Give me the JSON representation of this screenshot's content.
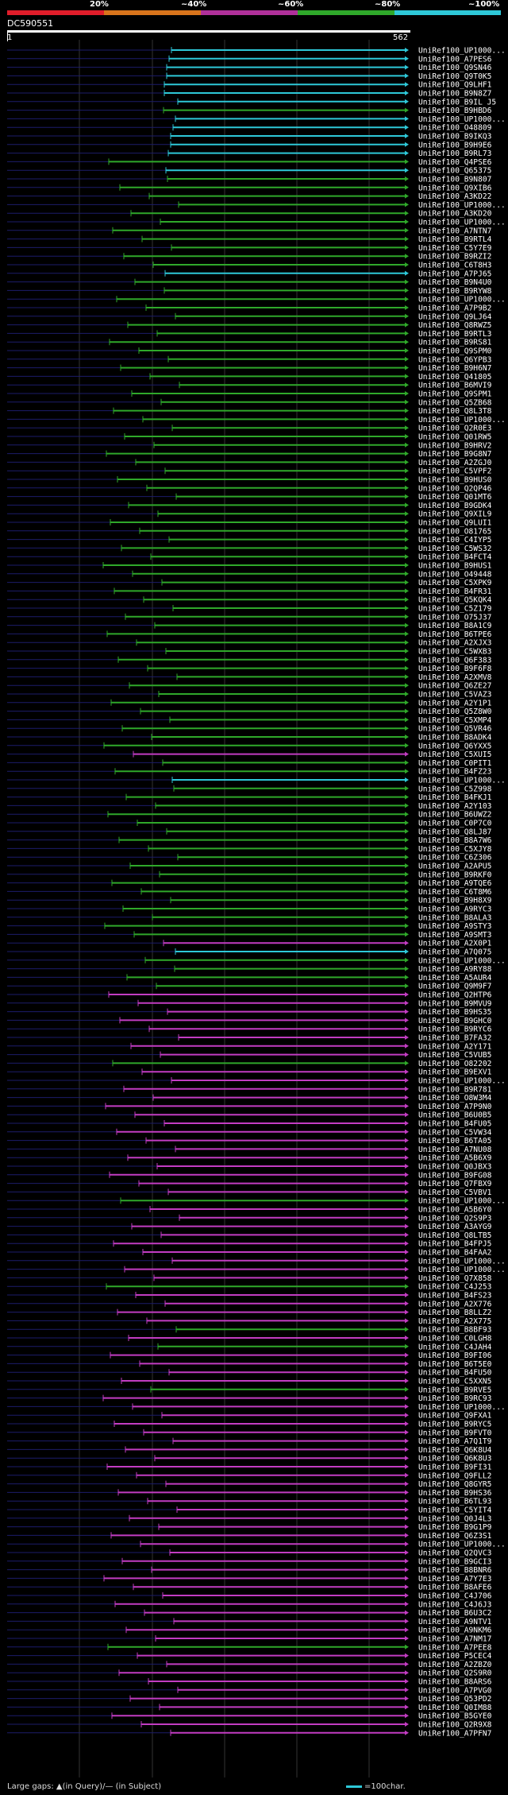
{
  "legend": {
    "labels": [
      "20%",
      "~40%",
      "~60%",
      "~80%",
      "~100%"
    ],
    "colors": [
      "#e01d2a",
      "#d8741c",
      "#b0309a",
      "#2fa82a",
      "#2ec8d8"
    ]
  },
  "query": {
    "name": "DC590551",
    "start": "1",
    "end": "562"
  },
  "footer": {
    "large_gaps": "Large gaps: ▲(in Query)/— (in Subject)",
    "scale_note": "=100char."
  },
  "hits": [
    {
      "label": "UniRef100_UP1000...",
      "color": "cyan"
    },
    {
      "label": "UniRef100_A7PES6",
      "color": "cyan"
    },
    {
      "label": "UniRef100_Q9SN46",
      "color": "cyan"
    },
    {
      "label": "UniRef100_Q9T0K5",
      "color": "cyan"
    },
    {
      "label": "UniRef100_Q9LHF1",
      "color": "cyan"
    },
    {
      "label": "UniRef100_B9N8Z7",
      "color": "cyan"
    },
    {
      "label": "UniRef100_B9IL J5",
      "color": "cyan"
    },
    {
      "label": "UniRef100_B9HBD6",
      "color": "green"
    },
    {
      "label": "UniRef100_UP1000...",
      "color": "cyan"
    },
    {
      "label": "UniRef100_O48809",
      "color": "cyan"
    },
    {
      "label": "UniRef100_B9IKQ3",
      "color": "cyan"
    },
    {
      "label": "UniRef100_B9H9E6",
      "color": "cyan"
    },
    {
      "label": "UniRef100_B9RL73",
      "color": "cyan"
    },
    {
      "label": "UniRef100_Q4PSE6",
      "color": "green"
    },
    {
      "label": "UniRef100_Q65375",
      "color": "cyan"
    },
    {
      "label": "UniRef100_B9N807",
      "color": "green"
    },
    {
      "label": "UniRef100_Q9XIB6",
      "color": "green"
    },
    {
      "label": "UniRef100_A3KD22",
      "color": "green"
    },
    {
      "label": "UniRef100_UP1000...",
      "color": "green"
    },
    {
      "label": "UniRef100_A3KD20",
      "color": "green"
    },
    {
      "label": "UniRef100_UP1000...",
      "color": "green"
    },
    {
      "label": "UniRef100_A7NTN7",
      "color": "green"
    },
    {
      "label": "UniRef100_B9RTL4",
      "color": "green"
    },
    {
      "label": "UniRef100_C5Y7E9",
      "color": "green"
    },
    {
      "label": "UniRef100_B9RZI2",
      "color": "green"
    },
    {
      "label": "UniRef100_C6T8H3",
      "color": "green"
    },
    {
      "label": "UniRef100_A7PJ65",
      "color": "cyan"
    },
    {
      "label": "UniRef100_B9N4U0",
      "color": "green"
    },
    {
      "label": "UniRef100_B9RYW8",
      "color": "green"
    },
    {
      "label": "UniRef100_UP1000...",
      "color": "green"
    },
    {
      "label": "UniRef100_A7P9B2",
      "color": "green"
    },
    {
      "label": "UniRef100_Q9LJ64",
      "color": "green"
    },
    {
      "label": "UniRef100_Q8RWZ5",
      "color": "green"
    },
    {
      "label": "UniRef100_B9RTL3",
      "color": "green"
    },
    {
      "label": "UniRef100_B9RS81",
      "color": "green"
    },
    {
      "label": "UniRef100_Q9SPM0",
      "color": "green"
    },
    {
      "label": "UniRef100_Q6YPB3",
      "color": "green"
    },
    {
      "label": "UniRef100_B9H6N7",
      "color": "green"
    },
    {
      "label": "UniRef100_Q41805",
      "color": "green"
    },
    {
      "label": "UniRef100_B6MVI9",
      "color": "green"
    },
    {
      "label": "UniRef100_Q9SPM1",
      "color": "green"
    },
    {
      "label": "UniRef100_Q5ZB68",
      "color": "green"
    },
    {
      "label": "UniRef100_Q8L3T8",
      "color": "green"
    },
    {
      "label": "UniRef100_UP1000...",
      "color": "green"
    },
    {
      "label": "UniRef100_Q2R0E3",
      "color": "green"
    },
    {
      "label": "UniRef100_Q01RW5",
      "color": "green"
    },
    {
      "label": "UniRef100_B9HRV2",
      "color": "green"
    },
    {
      "label": "UniRef100_B9G8N7",
      "color": "green"
    },
    {
      "label": "UniRef100_A2ZGJ0",
      "color": "green"
    },
    {
      "label": "UniRef100_C5VPF2",
      "color": "green"
    },
    {
      "label": "UniRef100_B9HUS0",
      "color": "green"
    },
    {
      "label": "UniRef100_Q2QP46",
      "color": "green"
    },
    {
      "label": "UniRef100_Q01MT6",
      "color": "green"
    },
    {
      "label": "UniRef100_B9GDK4",
      "color": "green"
    },
    {
      "label": "UniRef100_Q9XIL9",
      "color": "green"
    },
    {
      "label": "UniRef100_Q9LUI1",
      "color": "green"
    },
    {
      "label": "UniRef100_O81765",
      "color": "green"
    },
    {
      "label": "UniRef100_C4IYP5",
      "color": "green"
    },
    {
      "label": "UniRef100_C5WS32",
      "color": "green"
    },
    {
      "label": "UniRef100_B4FCT4",
      "color": "green"
    },
    {
      "label": "UniRef100_B9HUS1",
      "color": "green"
    },
    {
      "label": "UniRef100_O49448",
      "color": "green"
    },
    {
      "label": "UniRef100_C5XPK9",
      "color": "green"
    },
    {
      "label": "UniRef100_B4FR31",
      "color": "green"
    },
    {
      "label": "UniRef100_Q5KQK4",
      "color": "green"
    },
    {
      "label": "UniRef100_C5Z179",
      "color": "green"
    },
    {
      "label": "UniRef100_O75J37",
      "color": "green"
    },
    {
      "label": "UniRef100_B8A1C9",
      "color": "green"
    },
    {
      "label": "UniRef100_B6TPE6",
      "color": "green"
    },
    {
      "label": "UniRef100_A2XJX3",
      "color": "green"
    },
    {
      "label": "UniRef100_C5WXB3",
      "color": "green"
    },
    {
      "label": "UniRef100_Q6F383",
      "color": "green"
    },
    {
      "label": "UniRef100_B9F6F8",
      "color": "green"
    },
    {
      "label": "UniRef100_A2XMV8",
      "color": "green"
    },
    {
      "label": "UniRef100_Q6ZE27",
      "color": "green"
    },
    {
      "label": "UniRef100_C5VAZ3",
      "color": "green"
    },
    {
      "label": "UniRef100_A2Y1P1",
      "color": "green"
    },
    {
      "label": "UniRef100_Q5Z8W0",
      "color": "green"
    },
    {
      "label": "UniRef100_C5XMP4",
      "color": "green"
    },
    {
      "label": "UniRef100_Q5VR46",
      "color": "green"
    },
    {
      "label": "UniRef100_B8ADK4",
      "color": "green"
    },
    {
      "label": "UniRef100_Q6YXX5",
      "color": "green"
    },
    {
      "label": "UniRef100_C5XUI5",
      "color": "magenta"
    },
    {
      "label": "UniRef100_C0PIT1",
      "color": "green"
    },
    {
      "label": "UniRef100_B4FZ23",
      "color": "green"
    },
    {
      "label": "UniRef100_UP1000...",
      "color": "cyan"
    },
    {
      "label": "UniRef100_C5Z998",
      "color": "green"
    },
    {
      "label": "UniRef100_B4FKJ1",
      "color": "green"
    },
    {
      "label": "UniRef100_A2Y103",
      "color": "green"
    },
    {
      "label": "UniRef100_B6UWZ2",
      "color": "green"
    },
    {
      "label": "UniRef100_C0P7C0",
      "color": "green"
    },
    {
      "label": "UniRef100_Q8LJ87",
      "color": "green"
    },
    {
      "label": "UniRef100_B8A7W6",
      "color": "green"
    },
    {
      "label": "UniRef100_C5XJY8",
      "color": "green"
    },
    {
      "label": "UniRef100_C6Z306",
      "color": "green"
    },
    {
      "label": "UniRef100_A2APU5",
      "color": "green"
    },
    {
      "label": "UniRef100_B9RKF0",
      "color": "green"
    },
    {
      "label": "UniRef100_A9TQE6",
      "color": "green"
    },
    {
      "label": "UniRef100_C6T8M6",
      "color": "green"
    },
    {
      "label": "UniRef100_B9H8X9",
      "color": "green"
    },
    {
      "label": "UniRef100_A9RYC3",
      "color": "green"
    },
    {
      "label": "UniRef100_B8ALA3",
      "color": "green"
    },
    {
      "label": "UniRef100_A9STY3",
      "color": "green"
    },
    {
      "label": "UniRef100_A9SMT3",
      "color": "green"
    },
    {
      "label": "UniRef100_A2X0P1",
      "color": "magenta"
    },
    {
      "label": "UniRef100_A7Q075",
      "color": "cyan"
    },
    {
      "label": "UniRef100_UP1000...",
      "color": "green"
    },
    {
      "label": "UniRef100_A9RY88",
      "color": "green"
    },
    {
      "label": "UniRef100_A5AUR4",
      "color": "green"
    },
    {
      "label": "UniRef100_Q9M9F7",
      "color": "green"
    },
    {
      "label": "UniRef100_Q2HTP6",
      "color": "magenta"
    },
    {
      "label": "UniRef100_B9MVU9",
      "color": "magenta"
    },
    {
      "label": "UniRef100_B9HS35",
      "color": "magenta"
    },
    {
      "label": "UniRef100_B9GHC0",
      "color": "magenta"
    },
    {
      "label": "UniRef100_B9RYC6",
      "color": "magenta"
    },
    {
      "label": "UniRef100_B7FA32",
      "color": "magenta"
    },
    {
      "label": "UniRef100_A2Y171",
      "color": "magenta"
    },
    {
      "label": "UniRef100_C5VUB5",
      "color": "magenta"
    },
    {
      "label": "UniRef100_O82202",
      "color": "green"
    },
    {
      "label": "UniRef100_B9EXV1",
      "color": "magenta"
    },
    {
      "label": "UniRef100_UP1000...",
      "color": "magenta"
    },
    {
      "label": "UniRef100_B9R781",
      "color": "magenta"
    },
    {
      "label": "UniRef100_O8W3M4",
      "color": "magenta"
    },
    {
      "label": "UniRef100_A7P9N0",
      "color": "magenta"
    },
    {
      "label": "UniRef100_B6U0B5",
      "color": "magenta"
    },
    {
      "label": "UniRef100_B4FU05",
      "color": "magenta"
    },
    {
      "label": "UniRef100_C5VW34",
      "color": "magenta"
    },
    {
      "label": "UniRef100_B6TA05",
      "color": "magenta"
    },
    {
      "label": "UniRef100_A7NU08",
      "color": "magenta"
    },
    {
      "label": "UniRef100_A5B6X9",
      "color": "magenta"
    },
    {
      "label": "UniRef100_Q0JBX3",
      "color": "magenta"
    },
    {
      "label": "UniRef100_B9FG08",
      "color": "magenta"
    },
    {
      "label": "UniRef100_Q7FBX9",
      "color": "magenta"
    },
    {
      "label": "UniRef100_C5VBV1",
      "color": "magenta"
    },
    {
      "label": "UniRef100_UP1000...",
      "color": "green"
    },
    {
      "label": "UniRef100_A5B6Y0",
      "color": "magenta"
    },
    {
      "label": "UniRef100_Q2S9P3",
      "color": "magenta"
    },
    {
      "label": "UniRef100_A3AYG9",
      "color": "magenta"
    },
    {
      "label": "UniRef100_Q8LTB5",
      "color": "magenta"
    },
    {
      "label": "UniRef100_B4FPJ5",
      "color": "magenta"
    },
    {
      "label": "UniRef100_B4FAA2",
      "color": "magenta"
    },
    {
      "label": "UniRef100_UP1000...",
      "color": "magenta"
    },
    {
      "label": "UniRef100_UP1000...",
      "color": "magenta"
    },
    {
      "label": "UniRef100_Q7X858",
      "color": "magenta"
    },
    {
      "label": "UniRef100_C4J253",
      "color": "green"
    },
    {
      "label": "UniRef100_B4FS23",
      "color": "magenta"
    },
    {
      "label": "UniRef100_A2X776",
      "color": "magenta"
    },
    {
      "label": "UniRef100_B8LLZ2",
      "color": "magenta"
    },
    {
      "label": "UniRef100_A2X775",
      "color": "magenta"
    },
    {
      "label": "UniRef100_B8BF93",
      "color": "green"
    },
    {
      "label": "UniRef100_C0LGH8",
      "color": "magenta"
    },
    {
      "label": "UniRef100_C4JAH4",
      "color": "green"
    },
    {
      "label": "UniRef100_B9FI06",
      "color": "magenta"
    },
    {
      "label": "UniRef100_B6T5E0",
      "color": "magenta"
    },
    {
      "label": "UniRef100_B4FU50",
      "color": "magenta"
    },
    {
      "label": "UniRef100_C5XXN5",
      "color": "magenta"
    },
    {
      "label": "UniRef100_B9RVE5",
      "color": "green"
    },
    {
      "label": "UniRef100_B9RC93",
      "color": "magenta"
    },
    {
      "label": "UniRef100_UP1000...",
      "color": "magenta"
    },
    {
      "label": "UniRef100_Q9FXA1",
      "color": "magenta"
    },
    {
      "label": "UniRef100_B9RYC5",
      "color": "magenta"
    },
    {
      "label": "UniRef100_B9FVT0",
      "color": "magenta"
    },
    {
      "label": "UniRef100_A7Q1T9",
      "color": "magenta"
    },
    {
      "label": "UniRef100_Q6K8U4",
      "color": "magenta"
    },
    {
      "label": "UniRef100_Q6K8U3",
      "color": "magenta"
    },
    {
      "label": "UniRef100_B9FI31",
      "color": "magenta"
    },
    {
      "label": "UniRef100_Q9FLL2",
      "color": "magenta"
    },
    {
      "label": "UniRef100_Q8GYR5",
      "color": "magenta"
    },
    {
      "label": "UniRef100_B9HS36",
      "color": "magenta"
    },
    {
      "label": "UniRef100_B6TL93",
      "color": "magenta"
    },
    {
      "label": "UniRef100_C5YIT4",
      "color": "magenta"
    },
    {
      "label": "UniRef100_Q0J4L3",
      "color": "magenta"
    },
    {
      "label": "UniRef100_B9G1P9",
      "color": "magenta"
    },
    {
      "label": "UniRef100_Q6Z3S1",
      "color": "magenta"
    },
    {
      "label": "UniRef100_UP1000...",
      "color": "magenta"
    },
    {
      "label": "UniRef100_Q2QVC3",
      "color": "magenta"
    },
    {
      "label": "UniRef100_B9GCI3",
      "color": "magenta"
    },
    {
      "label": "UniRef100_B8BNR6",
      "color": "magenta"
    },
    {
      "label": "UniRef100_A7Y7E3",
      "color": "magenta"
    },
    {
      "label": "UniRef100_B8AFE6",
      "color": "magenta"
    },
    {
      "label": "UniRef100_C4J706",
      "color": "magenta"
    },
    {
      "label": "UniRef100_C4J6J3",
      "color": "magenta"
    },
    {
      "label": "UniRef100_B6U3C2",
      "color": "magenta"
    },
    {
      "label": "UniRef100_A9NTV1",
      "color": "magenta"
    },
    {
      "label": "UniRef100_A9NKM6",
      "color": "magenta"
    },
    {
      "label": "UniRef100_A7NM17",
      "color": "magenta"
    },
    {
      "label": "UniRef100_A7PEE8",
      "color": "green"
    },
    {
      "label": "UniRef100_P5CEC4",
      "color": "magenta"
    },
    {
      "label": "UniRef100_A2ZBZ0",
      "color": "magenta"
    },
    {
      "label": "UniRef100_Q2S9R0",
      "color": "magenta"
    },
    {
      "label": "UniRef100_B8ARS6",
      "color": "magenta"
    },
    {
      "label": "UniRef100_A7PVG0",
      "color": "magenta"
    },
    {
      "label": "UniRef100_Q53PD2",
      "color": "magenta"
    },
    {
      "label": "UniRef100_Q0IM88",
      "color": "magenta"
    },
    {
      "label": "UniRef100_B5GYE0",
      "color": "magenta"
    },
    {
      "label": "UniRef100_Q2R9X8",
      "color": "magenta"
    },
    {
      "label": "UniRef100_A7PFN7",
      "color": "magenta"
    }
  ]
}
